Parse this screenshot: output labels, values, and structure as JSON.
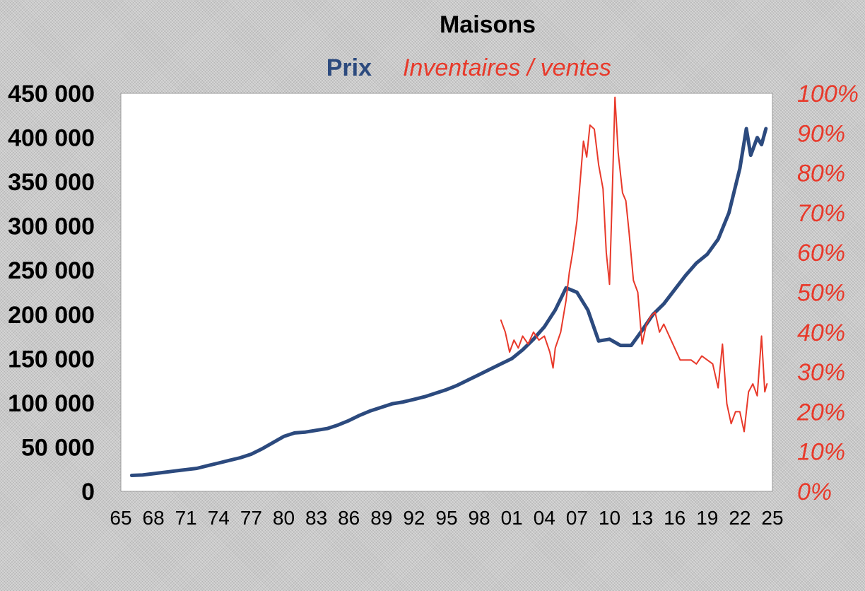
{
  "chart_data": {
    "type": "line",
    "title": "Maisons",
    "x_ticks": [
      "65",
      "68",
      "71",
      "74",
      "77",
      "80",
      "83",
      "86",
      "89",
      "92",
      "95",
      "98",
      "01",
      "04",
      "07",
      "10",
      "13",
      "16",
      "19",
      "22",
      "25"
    ],
    "xlim": [
      1965,
      2025
    ],
    "y_left": {
      "ticks": [
        "450 000",
        "400 000",
        "350 000",
        "300 000",
        "250 000",
        "200 000",
        "150 000",
        "100 000",
        "50 000",
        "0"
      ],
      "ylim": [
        0,
        450000
      ]
    },
    "y_right": {
      "ticks": [
        "100%",
        "90%",
        "80%",
        "70%",
        "60%",
        "50%",
        "40%",
        "30%",
        "20%",
        "10%",
        "0%"
      ],
      "ylim": [
        0,
        100
      ],
      "unit": "%"
    },
    "grid": false,
    "series": [
      {
        "name": "Prix",
        "color": "#2c4a7e",
        "axis": "left",
        "points": [
          [
            1966,
            18000
          ],
          [
            1967,
            18500
          ],
          [
            1968,
            20000
          ],
          [
            1969,
            21500
          ],
          [
            1970,
            23000
          ],
          [
            1971,
            24500
          ],
          [
            1972,
            26000
          ],
          [
            1973,
            29000
          ],
          [
            1974,
            32000
          ],
          [
            1975,
            35000
          ],
          [
            1976,
            38000
          ],
          [
            1977,
            42000
          ],
          [
            1978,
            48000
          ],
          [
            1979,
            55000
          ],
          [
            1980,
            62000
          ],
          [
            1981,
            66000
          ],
          [
            1982,
            67000
          ],
          [
            1983,
            69000
          ],
          [
            1984,
            71000
          ],
          [
            1985,
            75000
          ],
          [
            1986,
            80000
          ],
          [
            1987,
            86000
          ],
          [
            1988,
            91000
          ],
          [
            1989,
            95000
          ],
          [
            1990,
            99000
          ],
          [
            1991,
            101000
          ],
          [
            1992,
            104000
          ],
          [
            1993,
            107000
          ],
          [
            1994,
            111000
          ],
          [
            1995,
            115000
          ],
          [
            1996,
            120000
          ],
          [
            1997,
            126000
          ],
          [
            1998,
            132000
          ],
          [
            1999,
            138000
          ],
          [
            2000,
            144000
          ],
          [
            2001,
            150000
          ],
          [
            2002,
            160000
          ],
          [
            2003,
            172000
          ],
          [
            2004,
            186000
          ],
          [
            2005,
            205000
          ],
          [
            2006,
            230000
          ],
          [
            2007,
            225000
          ],
          [
            2008,
            205000
          ],
          [
            2009,
            170000
          ],
          [
            2010,
            172000
          ],
          [
            2011,
            165000
          ],
          [
            2012,
            165000
          ],
          [
            2013,
            182000
          ],
          [
            2014,
            200000
          ],
          [
            2015,
            212000
          ],
          [
            2016,
            228000
          ],
          [
            2017,
            244000
          ],
          [
            2018,
            258000
          ],
          [
            2019,
            268000
          ],
          [
            2020,
            285000
          ],
          [
            2021,
            315000
          ],
          [
            2022,
            365000
          ],
          [
            2022.6,
            410000
          ],
          [
            2023,
            380000
          ],
          [
            2023.6,
            400000
          ],
          [
            2024,
            392000
          ],
          [
            2024.4,
            410000
          ]
        ]
      },
      {
        "name": "Inventaires / ventes",
        "color": "#e8392a",
        "axis": "right",
        "points": [
          [
            2000,
            43
          ],
          [
            2000.4,
            40
          ],
          [
            2000.8,
            35
          ],
          [
            2001.2,
            38
          ],
          [
            2001.6,
            36
          ],
          [
            2002,
            39
          ],
          [
            2002.5,
            37
          ],
          [
            2003,
            40
          ],
          [
            2003.5,
            38
          ],
          [
            2004,
            39
          ],
          [
            2004.5,
            35
          ],
          [
            2004.8,
            31
          ],
          [
            2005,
            36
          ],
          [
            2005.5,
            40
          ],
          [
            2006,
            48
          ],
          [
            2006.3,
            55
          ],
          [
            2006.6,
            60
          ],
          [
            2007,
            68
          ],
          [
            2007.3,
            78
          ],
          [
            2007.6,
            88
          ],
          [
            2007.9,
            84
          ],
          [
            2008.2,
            92
          ],
          [
            2008.6,
            91
          ],
          [
            2009,
            82
          ],
          [
            2009.4,
            76
          ],
          [
            2009.7,
            60
          ],
          [
            2010,
            52
          ],
          [
            2010.2,
            70
          ],
          [
            2010.5,
            99
          ],
          [
            2010.8,
            85
          ],
          [
            2011.2,
            75
          ],
          [
            2011.5,
            73
          ],
          [
            2011.8,
            65
          ],
          [
            2012.2,
            53
          ],
          [
            2012.6,
            50
          ],
          [
            2013,
            37
          ],
          [
            2013.4,
            42
          ],
          [
            2013.8,
            44
          ],
          [
            2014.2,
            45
          ],
          [
            2014.6,
            40
          ],
          [
            2015,
            42
          ],
          [
            2015.5,
            39
          ],
          [
            2016,
            36
          ],
          [
            2016.5,
            33
          ],
          [
            2017,
            33
          ],
          [
            2017.5,
            33
          ],
          [
            2018,
            32
          ],
          [
            2018.5,
            34
          ],
          [
            2019,
            33
          ],
          [
            2019.5,
            32
          ],
          [
            2020,
            26
          ],
          [
            2020.4,
            37
          ],
          [
            2020.8,
            22
          ],
          [
            2021.2,
            17
          ],
          [
            2021.6,
            20
          ],
          [
            2022,
            20
          ],
          [
            2022.4,
            15
          ],
          [
            2022.8,
            25
          ],
          [
            2023.2,
            27
          ],
          [
            2023.6,
            24
          ],
          [
            2024,
            39
          ],
          [
            2024.3,
            25
          ],
          [
            2024.5,
            27
          ]
        ]
      }
    ]
  }
}
